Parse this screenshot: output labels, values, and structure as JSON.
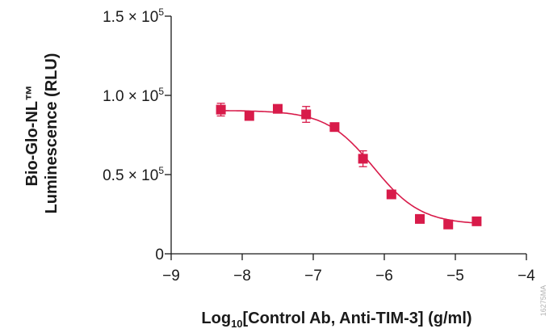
{
  "chart_data": {
    "type": "scatter",
    "xlabel_parts": {
      "prefix": "Log",
      "subscript": "10",
      "suffix": "[Control Ab, Anti-TIM-3] (g/ml)"
    },
    "ylabel_lines": [
      "Bio-Glo-NL™",
      "Luminescence (RLU)"
    ],
    "xlim": [
      -9,
      -4
    ],
    "ylim": [
      0,
      150000
    ],
    "x_ticks": [
      {
        "value": -9,
        "label": "−9"
      },
      {
        "value": -8,
        "label": "−8"
      },
      {
        "value": -7,
        "label": "−7"
      },
      {
        "value": -6,
        "label": "−6"
      },
      {
        "value": -5,
        "label": "−5"
      },
      {
        "value": -4,
        "label": "−4"
      }
    ],
    "y_ticks": [
      {
        "value": 0,
        "label": "0",
        "exp": ""
      },
      {
        "value": 50000,
        "label": "0.5 × 10",
        "exp": "5"
      },
      {
        "value": 100000,
        "label": "1.0 × 10",
        "exp": "5"
      },
      {
        "value": 150000,
        "label": "1.5 × 10",
        "exp": "5"
      }
    ],
    "grid": false,
    "series": [
      {
        "color": "#d81b4a",
        "marker": "square",
        "points": [
          {
            "x": -8.3,
            "y": 91000,
            "err": 4000
          },
          {
            "x": -7.9,
            "y": 87000,
            "err": 1500
          },
          {
            "x": -7.5,
            "y": 91500,
            "err": 1500
          },
          {
            "x": -7.1,
            "y": 88000,
            "err": 5000
          },
          {
            "x": -6.7,
            "y": 80000,
            "err": 1500
          },
          {
            "x": -6.3,
            "y": 60000,
            "err": 5000
          },
          {
            "x": -5.9,
            "y": 37500,
            "err": 1500
          },
          {
            "x": -5.5,
            "y": 22000,
            "err": 1500
          },
          {
            "x": -5.1,
            "y": 18500,
            "err": 1500
          },
          {
            "x": -4.7,
            "y": 20500,
            "err": 1200
          }
        ],
        "fit": {
          "type": "4PL",
          "top": 90500,
          "bottom": 18500,
          "log_ic50": -6.15,
          "hill": 1.3
        }
      }
    ],
    "watermark": "16275MA"
  }
}
